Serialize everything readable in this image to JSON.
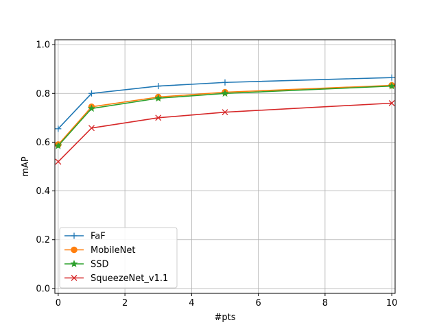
{
  "chart_data": {
    "type": "line",
    "title": "",
    "xlabel": "#pts",
    "ylabel": "mAP",
    "xlim": [
      -0.1,
      10.1
    ],
    "ylim": [
      -0.02,
      1.02
    ],
    "xticks": [
      0,
      2,
      4,
      6,
      8,
      10
    ],
    "yticks": [
      0.0,
      0.2,
      0.4,
      0.6,
      0.8,
      1.0
    ],
    "xtick_labels": [
      "0",
      "2",
      "4",
      "6",
      "8",
      "10"
    ],
    "ytick_labels": [
      "0.0",
      "0.2",
      "0.4",
      "0.6",
      "0.8",
      "1.0"
    ],
    "grid": true,
    "legend_position": "lower-left",
    "x": [
      0,
      1,
      3,
      5,
      10
    ],
    "series": [
      {
        "name": "FaF",
        "values": [
          0.655,
          0.8,
          0.83,
          0.845,
          0.865
        ],
        "color": "#1f77b4",
        "marker": "plus"
      },
      {
        "name": "MobileNet",
        "values": [
          0.59,
          0.745,
          0.785,
          0.805,
          0.833
        ],
        "color": "#ff7f0e",
        "marker": "circle"
      },
      {
        "name": "SSD",
        "values": [
          0.585,
          0.738,
          0.78,
          0.8,
          0.83
        ],
        "color": "#2ca02c",
        "marker": "star"
      },
      {
        "name": "SqueezeNet_v1.1",
        "values": [
          0.52,
          0.658,
          0.7,
          0.723,
          0.76
        ],
        "color": "#d62728",
        "marker": "x"
      }
    ]
  }
}
